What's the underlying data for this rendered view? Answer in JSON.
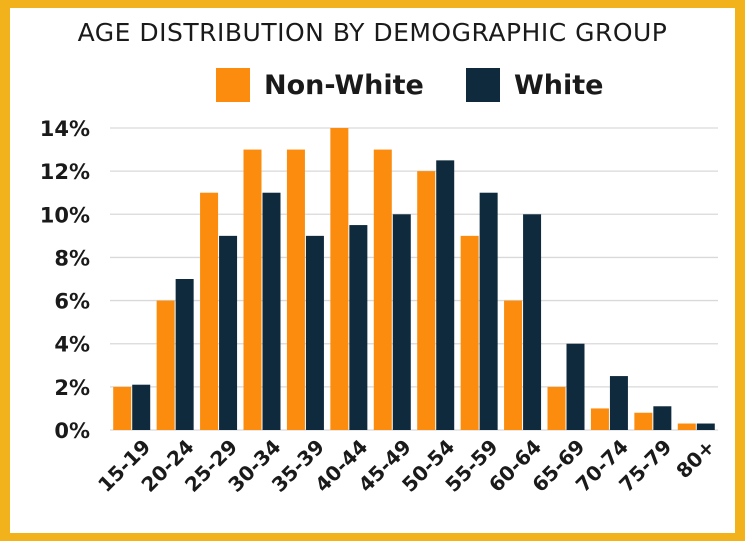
{
  "chart_data": {
    "type": "bar",
    "title": "AGE DISTRIBUTION BY DEMOGRAPHIC GROUP",
    "xlabel": "",
    "ylabel": "",
    "categories": [
      "15-19",
      "20-24",
      "25-29",
      "30-34",
      "35-39",
      "40-44",
      "45-49",
      "50-54",
      "55-59",
      "60-64",
      "65-69",
      "70-74",
      "75-79",
      "80+"
    ],
    "series": [
      {
        "name": "Non-White",
        "color": "#fb8c0e",
        "values": [
          2,
          6,
          11,
          13,
          13,
          14,
          13,
          12,
          9,
          6,
          2,
          1,
          0.8,
          0.3
        ]
      },
      {
        "name": "White",
        "color": "#0f2a3d",
        "values": [
          2.1,
          7,
          9,
          11,
          9,
          9.5,
          10,
          12.5,
          11,
          10,
          4,
          2.5,
          1.1,
          0.3
        ]
      }
    ],
    "ylim": [
      0,
      14
    ],
    "yticks": [
      "0%",
      "2%",
      "4%",
      "6%",
      "8%",
      "10%",
      "12%",
      "14%"
    ],
    "ytick_values": [
      0,
      2,
      4,
      6,
      8,
      10,
      12,
      14
    ],
    "grid": true,
    "legend_position": "top-center",
    "frame_color": "#f2b21c"
  }
}
